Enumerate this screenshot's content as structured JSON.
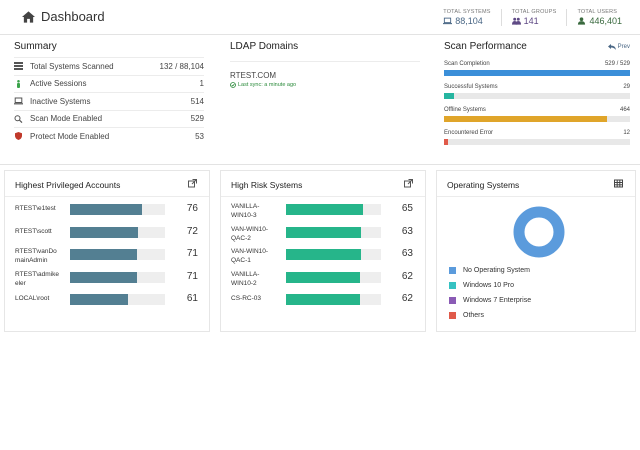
{
  "header": {
    "title": "Dashboard",
    "stats": [
      {
        "label": "TOTAL SYSTEMS",
        "value": "88,104",
        "icon": "laptop-icon",
        "color": "#4a6785"
      },
      {
        "label": "TOTAL GROUPS",
        "value": "141",
        "icon": "users-icon",
        "color": "#5f4a85"
      },
      {
        "label": "TOTAL USERS",
        "value": "446,401",
        "icon": "user-icon",
        "color": "#3a6a3f"
      }
    ]
  },
  "summary": {
    "title": "Summary",
    "rows": [
      {
        "label": "Total Systems Scanned",
        "value": "132 / 88,104",
        "icon": "server-icon",
        "icon_color": "#555"
      },
      {
        "label": "Active Sessions",
        "value": "1",
        "icon": "person-icon",
        "icon_color": "#3aa34a"
      },
      {
        "label": "Inactive Systems",
        "value": "514",
        "icon": "laptop-icon",
        "icon_color": "#555"
      },
      {
        "label": "Scan Mode Enabled",
        "value": "529",
        "icon": "search-icon",
        "icon_color": "#555"
      },
      {
        "label": "Protect Mode Enabled",
        "value": "53",
        "icon": "shield-icon",
        "icon_color": "#c0392b"
      }
    ]
  },
  "ldap": {
    "title": "LDAP Domains",
    "domain": "RTEST.COM",
    "sync": "Last sync: a minute ago"
  },
  "scan": {
    "title": "Scan Performance",
    "prev_label": "Prev",
    "items": [
      {
        "label": "Scan Completion",
        "value": "529 / 529",
        "fraction": 1.0,
        "color": "#3b8fd9"
      },
      {
        "label": "Successful Systems",
        "value": "29",
        "fraction": 0.055,
        "color": "#26b5a0"
      },
      {
        "label": "Offline Systems",
        "value": "464",
        "fraction": 0.877,
        "color": "#e0a52a"
      },
      {
        "label": "Encountered Error",
        "value": "12",
        "fraction": 0.023,
        "color": "#e05a4a"
      }
    ]
  },
  "privileged": {
    "title": "Highest Privileged Accounts",
    "color": "#537f92",
    "items": [
      {
        "lines": [
          "RTEST\\e1test"
        ],
        "value": 76
      },
      {
        "lines": [
          "RTEST\\scott"
        ],
        "value": 72
      },
      {
        "lines": [
          "RTEST\\vanDo",
          "mainAdmin"
        ],
        "value": 71
      },
      {
        "lines": [
          "RTEST\\admike",
          "eler"
        ],
        "value": 71
      },
      {
        "lines": [
          "LOCAL\\root"
        ],
        "value": 61
      }
    ]
  },
  "risk": {
    "title": "High Risk Systems",
    "color": "#26b58a",
    "items": [
      {
        "lines": [
          "VANILLA-",
          "WIN10-3"
        ],
        "value": 65
      },
      {
        "lines": [
          "VAN-WIN10-",
          "QAC-2"
        ],
        "value": 63
      },
      {
        "lines": [
          "VAN-WIN10-",
          "QAC-1"
        ],
        "value": 63
      },
      {
        "lines": [
          "VANILLA-",
          "WIN10-2"
        ],
        "value": 62
      },
      {
        "lines": [
          "CS-RC-03"
        ],
        "value": 62
      }
    ]
  },
  "os": {
    "title": "Operating Systems",
    "legend": [
      {
        "label": "No Operating System",
        "color": "#5b9bdc",
        "share": 1.0
      },
      {
        "label": "Windows 10 Pro",
        "color": "#36c2c2",
        "share": 0
      },
      {
        "label": "Windows 7 Enterprise",
        "color": "#8a5bb5",
        "share": 0
      },
      {
        "label": "Others",
        "color": "#e05a4a",
        "share": 0
      }
    ]
  }
}
